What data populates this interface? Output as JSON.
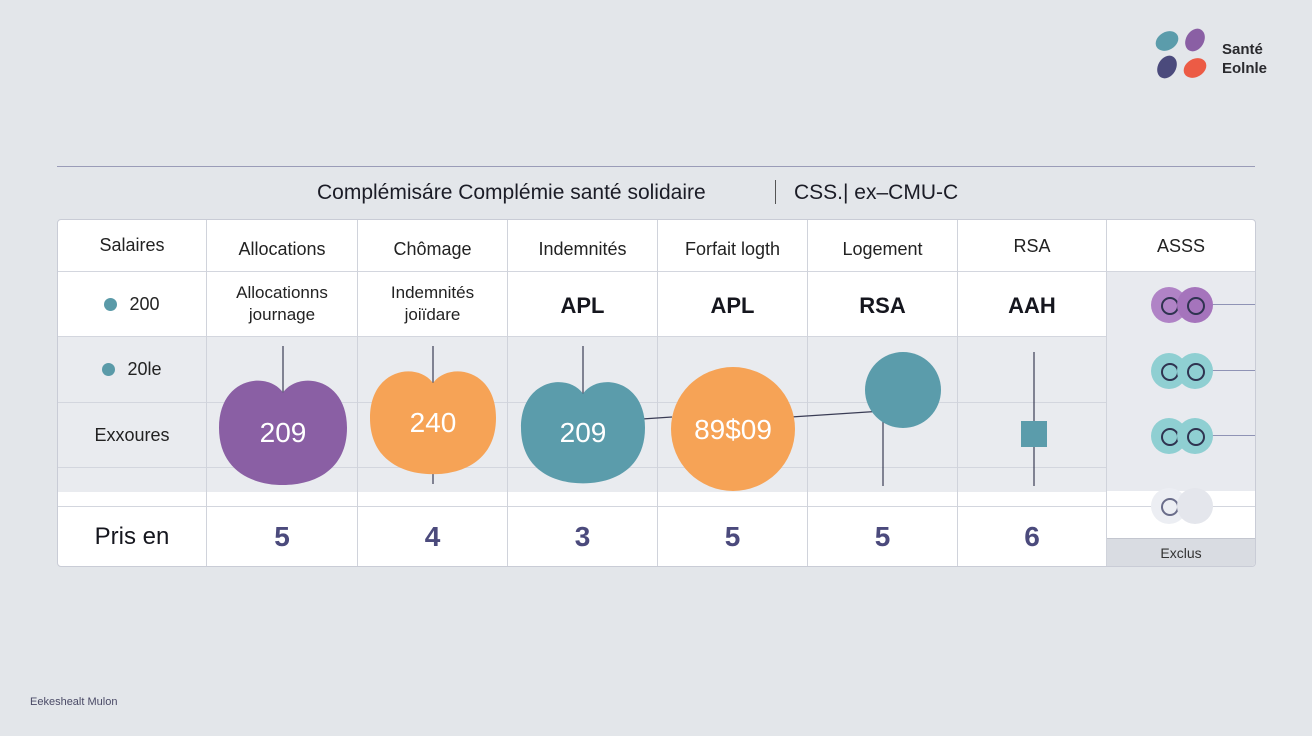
{
  "logo": {
    "line1": "Santé",
    "line2": "Eolnle"
  },
  "title": {
    "main": "Complémisáre Complémie santé solidaire",
    "sub": "CSS.| ex–CMU-C"
  },
  "table": {
    "headers": [
      "Salaires",
      "Allocations",
      "Chômage",
      "Indemnités",
      "Forfait logth",
      "Logement",
      "RSA",
      "ASSS"
    ],
    "row2": [
      "Allocationns\njournage",
      "Indemnités\njoiïdare",
      "APL",
      "APL",
      "RSA",
      "AAH"
    ],
    "row_labels": [
      "200",
      "20le",
      "Exxoures"
    ],
    "footer_label": "Pris en",
    "counts": [
      "5",
      "4",
      "3",
      "5",
      "5",
      "6"
    ],
    "excluded_label": "Exclus"
  },
  "chart_data": {
    "type": "bubble-table",
    "shapes": [
      {
        "column": "Allocations",
        "shape": "heart",
        "label": "209",
        "color": "#8a5fa4"
      },
      {
        "column": "Chômage",
        "shape": "heart",
        "label": "240",
        "color": "#f6a356"
      },
      {
        "column": "Indemnités",
        "shape": "heart",
        "label": "209",
        "color": "#5b9cab"
      },
      {
        "column": "Forfait logth",
        "shape": "circle",
        "label": "89$09",
        "color": "#f6a356"
      },
      {
        "column": "Logement",
        "shape": "circle",
        "label": "",
        "color": "#5b9cab"
      },
      {
        "column": "RSA",
        "shape": "square",
        "label": "",
        "color": "#5b9cab"
      }
    ]
  },
  "colors": {
    "purple": "#8a5fa4",
    "orange": "#f6a356",
    "teal": "#5b9cab",
    "navy": "#4b4a7c"
  },
  "footer": {
    "credit": "Eekeshealt Mulon"
  }
}
